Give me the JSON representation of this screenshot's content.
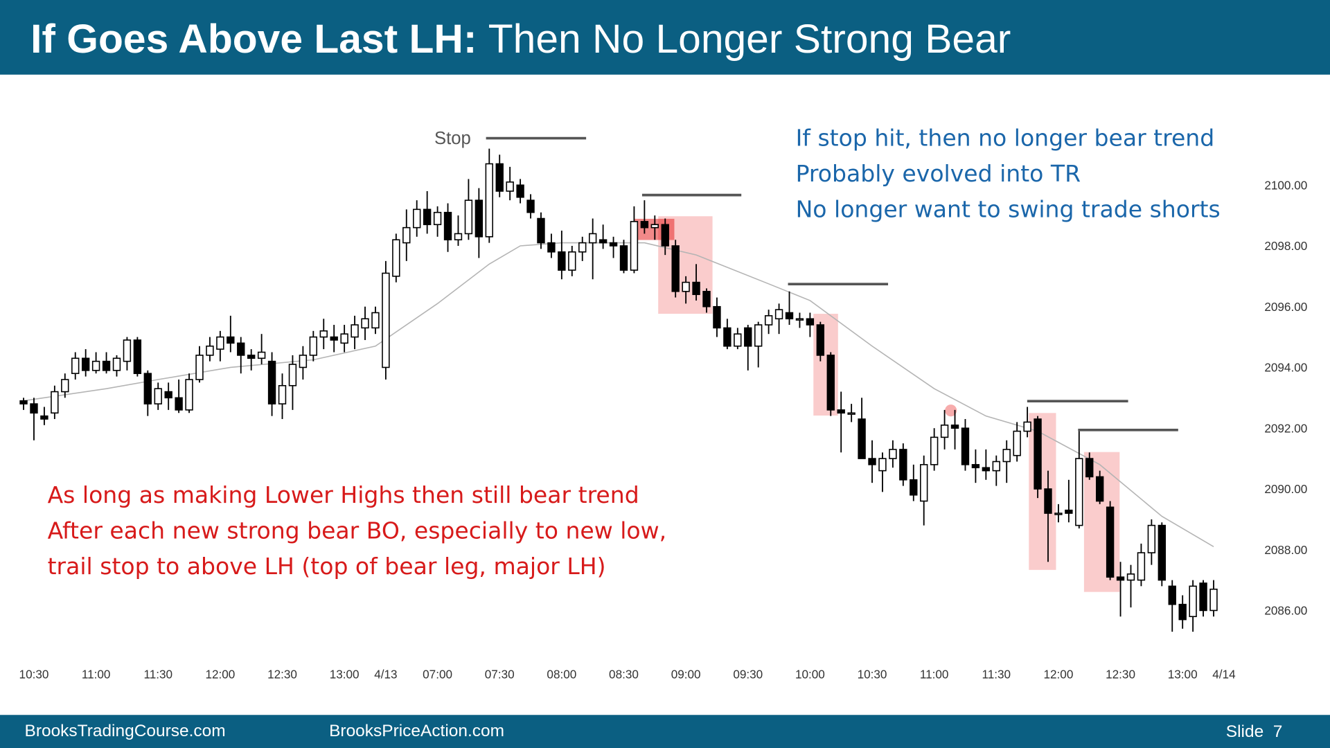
{
  "header": {
    "title_lead": "If Goes Above Last LH:",
    "title_rest": "Then No Longer Strong Bear"
  },
  "chart_data": {
    "type": "candlestick",
    "categories": [
      null,
      "10:30",
      null,
      null,
      null,
      null,
      null,
      "11:00",
      null,
      null,
      null,
      null,
      null,
      "11:30",
      null,
      null,
      null,
      null,
      null,
      "12:00",
      null,
      null,
      null,
      null,
      null,
      "12:30",
      null,
      null,
      null,
      null,
      null,
      "13:00",
      null,
      null,
      null,
      "4/13",
      null,
      null,
      null,
      null,
      "07:00",
      null,
      null,
      null,
      null,
      null,
      "07:30",
      null,
      null,
      null,
      null,
      null,
      "08:00",
      null,
      null,
      null,
      null,
      null,
      "08:30",
      null,
      null,
      null,
      null,
      null,
      "09:00",
      null,
      null,
      null,
      null,
      null,
      "09:30",
      null,
      null,
      null,
      null,
      null,
      "10:00",
      null,
      null,
      null,
      null,
      null,
      "10:30",
      null,
      null,
      null,
      null,
      null,
      "11:00",
      null,
      null,
      null,
      null,
      null,
      "11:30",
      null,
      null,
      null,
      null,
      null,
      "12:00",
      null,
      null,
      null,
      null,
      null,
      "12:30",
      null,
      null,
      null,
      null,
      null,
      "13:00",
      null,
      null,
      null,
      "4/14"
    ],
    "ohlc": [
      [
        2092.9,
        2093.0,
        2092.6,
        2092.8
      ],
      [
        2092.8,
        2093.0,
        2091.6,
        2092.5
      ],
      [
        2092.4,
        2092.7,
        2092.1,
        2092.3
      ],
      [
        2092.5,
        2093.4,
        2092.3,
        2093.2
      ],
      [
        2093.2,
        2093.8,
        2093.0,
        2093.6
      ],
      [
        2093.8,
        2094.5,
        2093.6,
        2094.3
      ],
      [
        2094.3,
        2094.6,
        2093.7,
        2093.9
      ],
      [
        2093.9,
        2094.5,
        2093.8,
        2094.2
      ],
      [
        2094.2,
        2094.5,
        2093.8,
        2093.9
      ],
      [
        2093.9,
        2094.4,
        2093.7,
        2094.3
      ],
      [
        2094.2,
        2095.0,
        2093.9,
        2094.9
      ],
      [
        2094.9,
        2095.0,
        2093.7,
        2093.8
      ],
      [
        2093.8,
        2093.9,
        2092.4,
        2092.8
      ],
      [
        2092.8,
        2093.5,
        2092.6,
        2093.3
      ],
      [
        2093.2,
        2093.5,
        2092.6,
        2093.0
      ],
      [
        2093.0,
        2093.6,
        2092.5,
        2092.6
      ],
      [
        2092.6,
        2093.8,
        2092.5,
        2093.6
      ],
      [
        2093.6,
        2094.7,
        2093.5,
        2094.4
      ],
      [
        2094.4,
        2095.0,
        2094.2,
        2094.7
      ],
      [
        2094.6,
        2095.2,
        2094.2,
        2095.0
      ],
      [
        2095.0,
        2095.7,
        2094.5,
        2094.8
      ],
      [
        2094.8,
        2095.0,
        2093.8,
        2094.4
      ],
      [
        2094.4,
        2094.6,
        2093.9,
        2094.3
      ],
      [
        2094.3,
        2095.1,
        2094.1,
        2094.5
      ],
      [
        2094.2,
        2094.5,
        2092.4,
        2092.8
      ],
      [
        2092.8,
        2093.8,
        2092.3,
        2093.4
      ],
      [
        2093.4,
        2094.4,
        2092.6,
        2094.1
      ],
      [
        2094.0,
        2094.7,
        2093.6,
        2094.4
      ],
      [
        2094.4,
        2095.2,
        2094.2,
        2095.0
      ],
      [
        2095.0,
        2095.6,
        2094.6,
        2095.2
      ],
      [
        2095.0,
        2095.4,
        2094.5,
        2094.9
      ],
      [
        2094.8,
        2095.4,
        2094.5,
        2095.1
      ],
      [
        2095.0,
        2095.7,
        2094.6,
        2095.4
      ],
      [
        2095.3,
        2096.0,
        2094.9,
        2095.6
      ],
      [
        2095.3,
        2096.0,
        2095.1,
        2095.8
      ],
      [
        2094.0,
        2097.5,
        2093.6,
        2097.1
      ],
      [
        2097.0,
        2098.4,
        2096.8,
        2098.2
      ],
      [
        2098.1,
        2099.2,
        2097.5,
        2098.6
      ],
      [
        2098.6,
        2099.5,
        2098.3,
        2099.2
      ],
      [
        2099.2,
        2099.8,
        2098.4,
        2098.7
      ],
      [
        2098.7,
        2099.3,
        2098.3,
        2099.1
      ],
      [
        2099.1,
        2099.4,
        2097.8,
        2098.2
      ],
      [
        2098.2,
        2099.0,
        2098.0,
        2098.4
      ],
      [
        2098.4,
        2100.2,
        2098.2,
        2099.5
      ],
      [
        2099.5,
        2099.9,
        2097.6,
        2098.3
      ],
      [
        2098.3,
        2101.2,
        2098.1,
        2100.7
      ],
      [
        2100.7,
        2101.0,
        2099.6,
        2099.8
      ],
      [
        2099.8,
        2100.6,
        2099.5,
        2100.1
      ],
      [
        2100.0,
        2100.2,
        2099.4,
        2099.6
      ],
      [
        2099.5,
        2099.7,
        2098.9,
        2099.1
      ],
      [
        2098.9,
        2099.1,
        2097.9,
        2098.1
      ],
      [
        2098.1,
        2098.4,
        2097.6,
        2097.8
      ],
      [
        2097.8,
        2098.5,
        2096.9,
        2097.2
      ],
      [
        2097.2,
        2098.0,
        2097.0,
        2097.8
      ],
      [
        2097.8,
        2098.3,
        2097.5,
        2098.1
      ],
      [
        2098.1,
        2098.9,
        2096.9,
        2098.4
      ],
      [
        2098.2,
        2098.7,
        2097.9,
        2098.1
      ],
      [
        2098.1,
        2098.3,
        2097.6,
        2098.0
      ],
      [
        2098.0,
        2098.2,
        2097.1,
        2097.2
      ],
      [
        2097.2,
        2099.3,
        2097.1,
        2098.8
      ],
      [
        2098.8,
        2099.5,
        2098.4,
        2098.6
      ],
      [
        2098.6,
        2099.0,
        2098.2,
        2098.7
      ],
      [
        2098.7,
        2098.9,
        2097.7,
        2098.0
      ],
      [
        2098.0,
        2098.2,
        2096.3,
        2096.5
      ],
      [
        2096.5,
        2097.0,
        2096.1,
        2096.8
      ],
      [
        2096.8,
        2097.4,
        2096.2,
        2096.4
      ],
      [
        2096.5,
        2096.6,
        2095.8,
        2096.0
      ],
      [
        2096.0,
        2096.3,
        2095.0,
        2095.3
      ],
      [
        2095.3,
        2095.6,
        2094.6,
        2094.7
      ],
      [
        2094.7,
        2095.3,
        2094.6,
        2095.1
      ],
      [
        2095.3,
        2095.4,
        2093.9,
        2094.7
      ],
      [
        2094.7,
        2095.5,
        2094.0,
        2095.4
      ],
      [
        2095.4,
        2095.9,
        2095.1,
        2095.7
      ],
      [
        2095.6,
        2096.1,
        2095.1,
        2095.9
      ],
      [
        2095.8,
        2096.5,
        2095.4,
        2095.6
      ],
      [
        2095.6,
        2095.8,
        2095.3,
        2095.6
      ],
      [
        2095.6,
        2095.8,
        2095.0,
        2095.4
      ],
      [
        2095.4,
        2095.5,
        2094.2,
        2094.4
      ],
      [
        2094.4,
        2094.5,
        2092.4,
        2092.6
      ],
      [
        2092.6,
        2093.2,
        2091.2,
        2092.5
      ],
      [
        2092.5,
        2092.8,
        2092.2,
        2092.5
      ],
      [
        2092.3,
        2093.0,
        2091.0,
        2091.0
      ],
      [
        2091.0,
        2091.6,
        2090.2,
        2090.8
      ],
      [
        2090.6,
        2091.2,
        2089.9,
        2091.0
      ],
      [
        2091.0,
        2091.6,
        2090.7,
        2091.3
      ],
      [
        2091.3,
        2091.5,
        2090.1,
        2090.3
      ],
      [
        2090.3,
        2090.8,
        2089.6,
        2089.8
      ],
      [
        2089.6,
        2091.1,
        2088.8,
        2090.8
      ],
      [
        2090.8,
        2092.0,
        2090.6,
        2091.7
      ],
      [
        2091.7,
        2092.6,
        2091.3,
        2092.1
      ],
      [
        2092.1,
        2092.6,
        2091.3,
        2092.0
      ],
      [
        2092.0,
        2092.3,
        2090.6,
        2090.8
      ],
      [
        2090.8,
        2091.3,
        2090.2,
        2090.7
      ],
      [
        2090.7,
        2091.3,
        2090.3,
        2090.6
      ],
      [
        2090.6,
        2091.1,
        2090.1,
        2090.9
      ],
      [
        2090.9,
        2091.6,
        2090.2,
        2091.3
      ],
      [
        2091.1,
        2092.2,
        2090.9,
        2091.9
      ],
      [
        2091.9,
        2092.7,
        2091.7,
        2092.2
      ],
      [
        2092.3,
        2092.4,
        2089.7,
        2090.0
      ],
      [
        2090.0,
        2090.6,
        2087.6,
        2089.2
      ],
      [
        2089.2,
        2089.5,
        2088.9,
        2089.2
      ],
      [
        2089.3,
        2090.3,
        2088.9,
        2089.2
      ],
      [
        2088.8,
        2091.9,
        2088.7,
        2091.0
      ],
      [
        2091.0,
        2091.2,
        2090.3,
        2090.4
      ],
      [
        2090.4,
        2090.6,
        2089.5,
        2089.6
      ],
      [
        2089.4,
        2089.6,
        2087.0,
        2087.1
      ],
      [
        2087.1,
        2087.6,
        2085.8,
        2087.0
      ],
      [
        2087.0,
        2087.5,
        2086.1,
        2087.2
      ],
      [
        2087.0,
        2088.2,
        2086.8,
        2087.9
      ],
      [
        2087.9,
        2089.0,
        2087.5,
        2088.8
      ],
      [
        2088.8,
        2088.9,
        2086.8,
        2087.0
      ],
      [
        2086.8,
        2087.0,
        2085.3,
        2086.2
      ],
      [
        2086.2,
        2086.5,
        2085.4,
        2085.7
      ],
      [
        2085.8,
        2087.0,
        2085.3,
        2086.8
      ],
      [
        2086.9,
        2087.0,
        2085.8,
        2086.0
      ],
      [
        2086.0,
        2087.0,
        2085.8,
        2086.7
      ],
      null
    ],
    "moving_average": {
      "color": "#b4b4b4",
      "x": [
        0,
        8,
        13,
        20,
        28,
        34,
        40,
        45,
        48,
        52,
        60,
        65,
        72,
        76,
        82,
        88,
        93,
        98,
        104,
        110,
        115
      ],
      "values": [
        2092.9,
        2093.3,
        2093.6,
        2094.0,
        2094.25,
        2094.7,
        2096.1,
        2097.4,
        2098.0,
        2098.1,
        2098.1,
        2097.7,
        2096.75,
        2096.2,
        2094.7,
        2093.3,
        2092.4,
        2091.9,
        2090.8,
        2089.1,
        2088.1
      ]
    },
    "ylim": [
      2084.6,
      2103.3
    ],
    "yticks": [
      {
        "value": 2086,
        "label": "2086.00"
      },
      {
        "value": 2088,
        "label": "2088.00"
      },
      {
        "value": 2090,
        "label": "2090.00"
      },
      {
        "value": 2092,
        "label": "2092.00"
      },
      {
        "value": 2094,
        "label": "2094.00"
      },
      {
        "value": 2096,
        "label": "2096.00"
      },
      {
        "value": 2098,
        "label": "2098.00"
      },
      {
        "value": 2100,
        "label": "2100.00"
      }
    ],
    "grid": false,
    "annotations": {
      "stop": "Stop",
      "blue": [
        "If stop hit, then no longer bear trend",
        "Probably evolved into TR",
        "No longer want to swing trade shorts"
      ],
      "red": [
        "As long as making Lower Highs then still bear trend",
        "After each new strong bear BO, especially to new low,",
        "trail stop to above LH (top of bear leg, major LH)"
      ]
    }
  },
  "footer": {
    "left": "BrooksTradingCourse.com",
    "center": "BrooksPriceAction.com",
    "slide": "Slide  7"
  }
}
